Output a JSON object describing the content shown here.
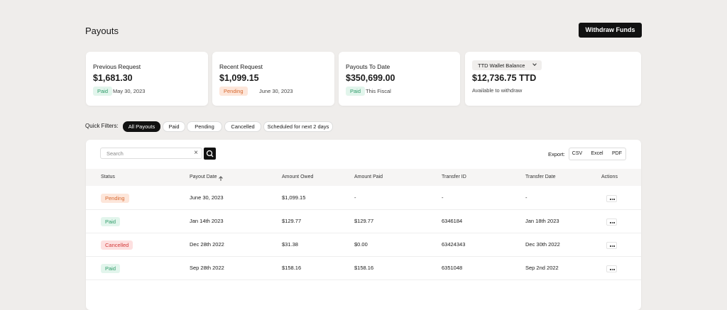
{
  "header": {
    "title": "Payouts",
    "button": "Withdraw Funds"
  },
  "cards": [
    {
      "label": "Previous Request",
      "amount": "$1,681.30",
      "status": "Paid",
      "note": "May 30, 2023"
    },
    {
      "label": "Recent Request",
      "amount": "$1,099.15",
      "status": "Pending",
      "note": "June 30, 2023"
    },
    {
      "label": "Payouts To Date",
      "amount": "$350,699.00",
      "status": "Paid",
      "note": "This Fiscal"
    },
    {
      "label": "TTD Wallet Balance",
      "amount": "$12,736.75 TTD",
      "note": "Available to withdraw"
    }
  ],
  "filters": {
    "label": "Quick Filters:",
    "options": [
      "All Payouts",
      "Paid",
      "Pending",
      "Cancelled",
      "Scheduled for next 2 days"
    ]
  },
  "search": {
    "placeholder": "Search"
  },
  "export": {
    "label": "Export:",
    "options": [
      "CSV",
      "Excel",
      "PDF"
    ]
  },
  "table": {
    "columns": [
      "Status",
      "Payout Date",
      "Amount Owed",
      "Amount Paid",
      "Transfer ID",
      "Transfer Date",
      "Actions"
    ],
    "rows": [
      [
        "Pending",
        "June 30, 2023",
        "$1,099.15",
        "-",
        "-",
        "-"
      ],
      [
        "Paid",
        "Jan 14th 2023",
        "$129.77",
        "$129.77",
        "6346184",
        "Jan 18th 2023"
      ],
      [
        "Cancelled",
        "Dec 28th 2022",
        "$31.38",
        "$0.00",
        "63424343",
        "Dec 30th 2022"
      ],
      [
        "Paid",
        "Sep 28th 2022",
        "$158.16",
        "$158.16",
        "6351048",
        "Sep 2nd 2022"
      ]
    ]
  }
}
